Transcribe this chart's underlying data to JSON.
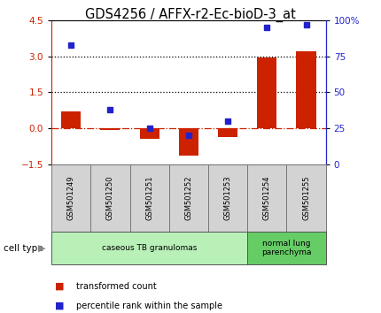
{
  "title": "GDS4256 / AFFX-r2-Ec-bioD-3_at",
  "categories": [
    "GSM501249",
    "GSM501250",
    "GSM501251",
    "GSM501252",
    "GSM501253",
    "GSM501254",
    "GSM501255"
  ],
  "bar_values": [
    0.72,
    -0.08,
    -0.42,
    -1.12,
    -0.35,
    2.95,
    3.22
  ],
  "percentile_values": [
    83,
    38,
    25,
    20,
    30,
    95,
    97
  ],
  "bar_color": "#cc2200",
  "dot_color": "#2222cc",
  "ylim_left": [
    -1.5,
    4.5
  ],
  "yticks_left": [
    -1.5,
    0.0,
    1.5,
    3.0,
    4.5
  ],
  "ylim_right": [
    0,
    100
  ],
  "yticks_right": [
    0,
    25,
    50,
    75,
    100
  ],
  "yticklabels_right": [
    "0",
    "25",
    "50",
    "75",
    "100%"
  ],
  "hline_dotted_vals": [
    1.5,
    3.0
  ],
  "cell_type_groups": [
    {
      "label": "caseous TB granulomas",
      "span": [
        0,
        5
      ],
      "color": "#b8f0b8"
    },
    {
      "label": "normal lung\nparenchyma",
      "span": [
        5,
        7
      ],
      "color": "#66cc66"
    }
  ],
  "cell_type_label": "cell type",
  "legend_items": [
    {
      "color": "#cc2200",
      "label": "transformed count"
    },
    {
      "color": "#2222cc",
      "label": "percentile rank within the sample"
    }
  ],
  "title_fontsize": 10.5,
  "tick_fontsize": 7.5,
  "bar_width": 0.5,
  "n_samples": 7,
  "grey_label_color": "#d3d3d3",
  "cell_type_arrow_color": "#888888"
}
